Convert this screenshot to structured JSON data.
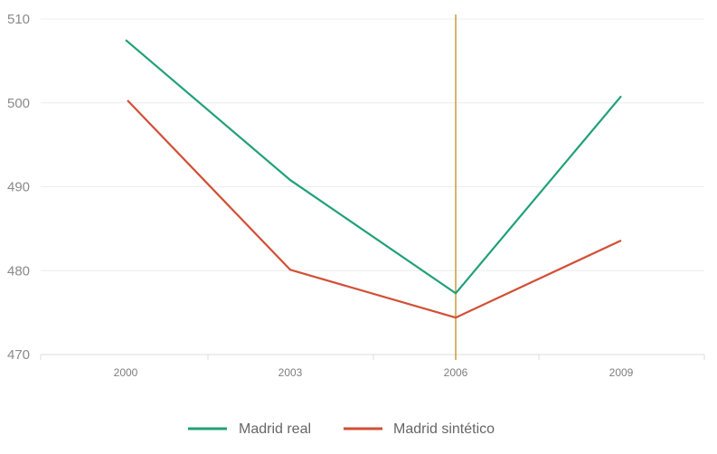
{
  "chart_data": {
    "type": "line",
    "title": "",
    "xlabel": "",
    "ylabel": "",
    "x": [
      2000,
      2003,
      2006,
      2009
    ],
    "x_tick_labels": [
      "2000",
      "2003",
      "2006",
      "2009"
    ],
    "y_ticks": [
      470,
      480,
      490,
      500,
      510
    ],
    "y_tick_labels": [
      "470",
      "480",
      "490",
      "500",
      "510"
    ],
    "ylim": [
      470,
      510
    ],
    "grid": "horizontal",
    "legend_position": "bottom",
    "vertical_marker_x": 2006,
    "marker_color": "#b8860b",
    "series": [
      {
        "name": "Madrid real",
        "color": "#21a07a",
        "values": [
          507.5,
          490.8,
          477.3,
          500.8
        ]
      },
      {
        "name": "Madrid sintético",
        "color": "#d24f35",
        "values": [
          500.3,
          480.1,
          474.4,
          483.6
        ]
      }
    ]
  }
}
